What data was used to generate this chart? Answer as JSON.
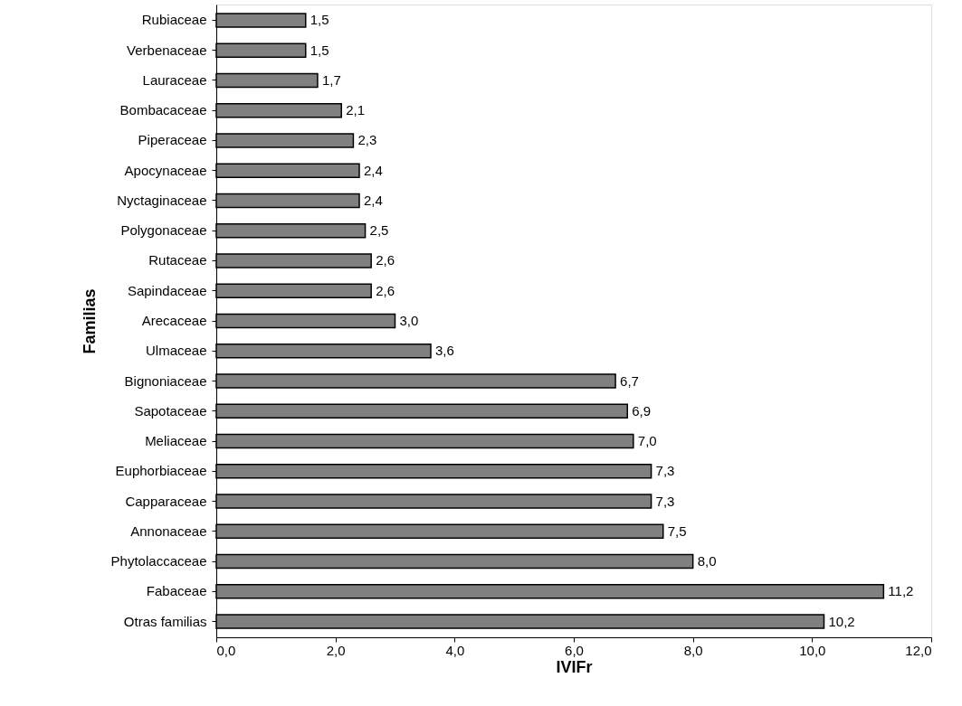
{
  "chart_data": {
    "type": "bar",
    "orientation": "horizontal",
    "xlabel": "IVIFr",
    "ylabel": "Familias",
    "categories": [
      "Rubiaceae",
      "Verbenaceae",
      "Lauraceae",
      "Bombacaceae",
      "Piperaceae",
      "Apocynaceae",
      "Nyctaginaceae",
      "Polygonaceae",
      "Rutaceae",
      "Sapindaceae",
      "Arecaceae",
      "Ulmaceae",
      "Bignoniaceae",
      "Sapotaceae",
      "Meliaceae",
      "Euphorbiaceae",
      "Capparaceae",
      "Annonaceae",
      "Phytolaccaceae",
      "Fabaceae",
      "Otras familias"
    ],
    "values": [
      1.5,
      1.5,
      1.7,
      2.1,
      2.3,
      2.4,
      2.4,
      2.5,
      2.6,
      2.6,
      3.0,
      3.6,
      6.7,
      6.9,
      7.0,
      7.3,
      7.3,
      7.5,
      8.0,
      11.2,
      10.2
    ],
    "value_labels": [
      "1,5",
      "1,5",
      "1,7",
      "2,1",
      "2,3",
      "2,4",
      "2,4",
      "2,5",
      "2,6",
      "2,6",
      "3,0",
      "3,6",
      "6,7",
      "6,9",
      "7,0",
      "7,3",
      "7,3",
      "7,5",
      "8,0",
      "11,2",
      "10,2"
    ],
    "color": "#808080",
    "xlim": [
      0,
      12
    ],
    "xticks": [
      {
        "value": 0,
        "label": "0,0"
      },
      {
        "value": 2,
        "label": "2,0"
      },
      {
        "value": 4,
        "label": "4,0"
      },
      {
        "value": 6,
        "label": "6,0"
      },
      {
        "value": 8,
        "label": "8,0"
      },
      {
        "value": 10,
        "label": "10,0"
      },
      {
        "value": 12,
        "label": "12,0"
      }
    ],
    "grid": false
  }
}
